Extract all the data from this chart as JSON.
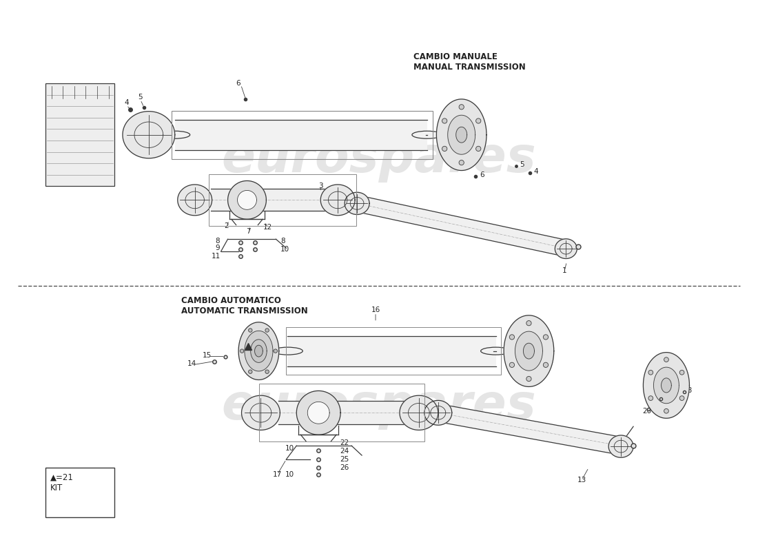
{
  "bg_color": "#ffffff",
  "lc": "#3a3a3a",
  "label_color": "#222222",
  "watermark_color": "#d0d0d0",
  "watermark_alpha": 0.55,
  "section1_title": "CAMBIO MANUALE\nMANUAL TRANSMISSION",
  "section2_title": "CAMBIO AUTOMATICO\nAUTOMATIC TRANSMISSION",
  "legend_text": "▲=21\nKIT",
  "font_size_label": 7.5,
  "font_size_title": 8.5
}
